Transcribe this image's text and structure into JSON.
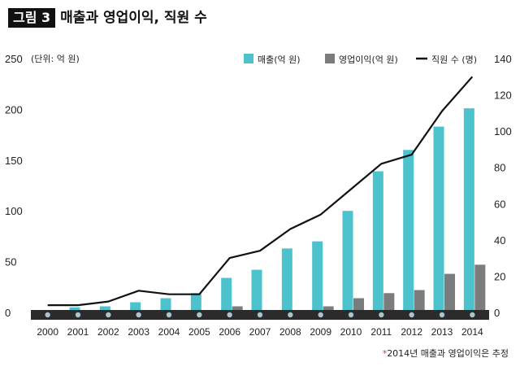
{
  "figure": {
    "badge": "그림 3",
    "title": "매출과 영업이익, 직원 수"
  },
  "colors": {
    "revenue": "#4cc3cc",
    "profit": "#7b7c7e",
    "employees": "#111111",
    "baseline": "#2b2b2b",
    "marker": "#a9c4cc"
  },
  "chart_data": {
    "type": "bar",
    "title": "매출과 영업이익, 직원 수",
    "unit_note": "(단위: 억 원)",
    "categories": [
      "2000",
      "2001",
      "2002",
      "2003",
      "2004",
      "2005",
      "2006",
      "2007",
      "2008",
      "2009",
      "2010",
      "2011",
      "2012",
      "2013",
      "2014"
    ],
    "series": [
      {
        "name": "매출(억 원)",
        "type": "bar",
        "axis": "left",
        "values": [
          1,
          5,
          6,
          10,
          14,
          19,
          34,
          42,
          63,
          70,
          100,
          139,
          160,
          183,
          201
        ]
      },
      {
        "name": "영업이익(억 원)",
        "type": "bar",
        "axis": "left",
        "values": [
          0,
          0,
          0,
          1,
          2,
          2,
          6,
          2,
          0,
          6,
          14,
          19,
          22,
          38,
          47
        ]
      },
      {
        "name": "직원 수 (명)",
        "type": "line",
        "axis": "right",
        "values": [
          4,
          4,
          6,
          12,
          10,
          10,
          30,
          34,
          46,
          54,
          68,
          82,
          87,
          111,
          130
        ]
      }
    ],
    "left_axis": {
      "ylim": [
        0,
        250
      ],
      "ticks": [
        "0",
        "50",
        "100",
        "150",
        "200",
        "250"
      ]
    },
    "right_axis": {
      "ylim": [
        0,
        140
      ],
      "ticks": [
        "0",
        "20",
        "40",
        "60",
        "80",
        "100",
        "120",
        "140"
      ]
    },
    "legend": [
      "매출(억 원)",
      "영업이익(억 원)",
      "직원 수 (명)"
    ],
    "legend_position": "top-right",
    "footnote_star": "*",
    "footnote": "2014년 매출과 영업이익은 추정"
  }
}
